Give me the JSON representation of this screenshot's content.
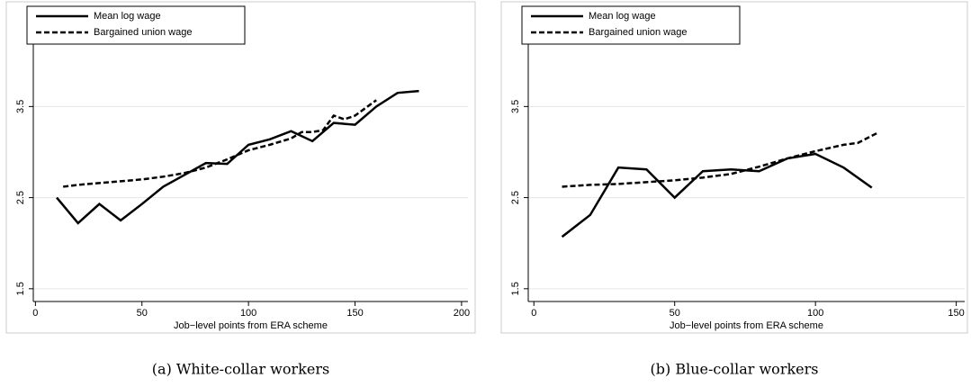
{
  "chart_data": [
    {
      "type": "line",
      "caption": "(a) White-collar workers",
      "xlabel": "Job−level points from ERA scheme",
      "xlim": [
        -1,
        203
      ],
      "ylim": [
        1.36,
        4.6
      ],
      "xticks": [
        0,
        50,
        100,
        150,
        200
      ],
      "yticks": [
        1.5,
        2.5,
        3.5
      ],
      "grid": true,
      "legend": "top-left",
      "series": [
        {
          "name": "Mean log wage",
          "color": "#000000",
          "line_style": "solid",
          "x": [
            10,
            20,
            30,
            40,
            50,
            60,
            70,
            80,
            90,
            100,
            110,
            120,
            130,
            140,
            150,
            160,
            170,
            180
          ],
          "values": [
            2.5,
            2.22,
            2.43,
            2.25,
            2.43,
            2.62,
            2.75,
            2.88,
            2.87,
            3.08,
            3.14,
            3.23,
            3.12,
            3.32,
            3.3,
            3.5,
            3.65,
            3.67
          ]
        },
        {
          "name": "Bargained union wage",
          "color": "#000000",
          "line_style": "dashed",
          "x": [
            13,
            20,
            30,
            40,
            50,
            60,
            70,
            80,
            90,
            100,
            110,
            120,
            125,
            130,
            135,
            140,
            145,
            150,
            160
          ],
          "values": [
            2.62,
            2.64,
            2.66,
            2.68,
            2.7,
            2.73,
            2.77,
            2.83,
            2.92,
            3.02,
            3.08,
            3.15,
            3.22,
            3.22,
            3.24,
            3.4,
            3.36,
            3.4,
            3.57
          ]
        }
      ]
    },
    {
      "type": "line",
      "caption": "(b) Blue-collar workers",
      "xlabel": "Job−level points from ERA scheme",
      "xlim": [
        -2,
        153
      ],
      "ylim": [
        1.36,
        4.6
      ],
      "xticks": [
        0,
        50,
        100,
        150
      ],
      "yticks": [
        1.5,
        2.5,
        3.5
      ],
      "grid": true,
      "legend": "top-left",
      "series": [
        {
          "name": "Mean log wage",
          "color": "#000000",
          "line_style": "solid",
          "x": [
            10,
            20,
            30,
            40,
            50,
            60,
            70,
            80,
            90,
            100,
            110,
            120
          ],
          "values": [
            2.07,
            2.31,
            2.83,
            2.81,
            2.5,
            2.79,
            2.81,
            2.79,
            2.93,
            2.98,
            2.83,
            2.61
          ]
        },
        {
          "name": "Bargained union wage",
          "color": "#000000",
          "line_style": "dashed",
          "x": [
            10,
            20,
            30,
            40,
            50,
            60,
            70,
            80,
            90,
            100,
            110,
            115,
            122
          ],
          "values": [
            2.62,
            2.64,
            2.65,
            2.67,
            2.69,
            2.72,
            2.76,
            2.84,
            2.93,
            3.01,
            3.08,
            3.1,
            3.21
          ]
        }
      ]
    }
  ]
}
